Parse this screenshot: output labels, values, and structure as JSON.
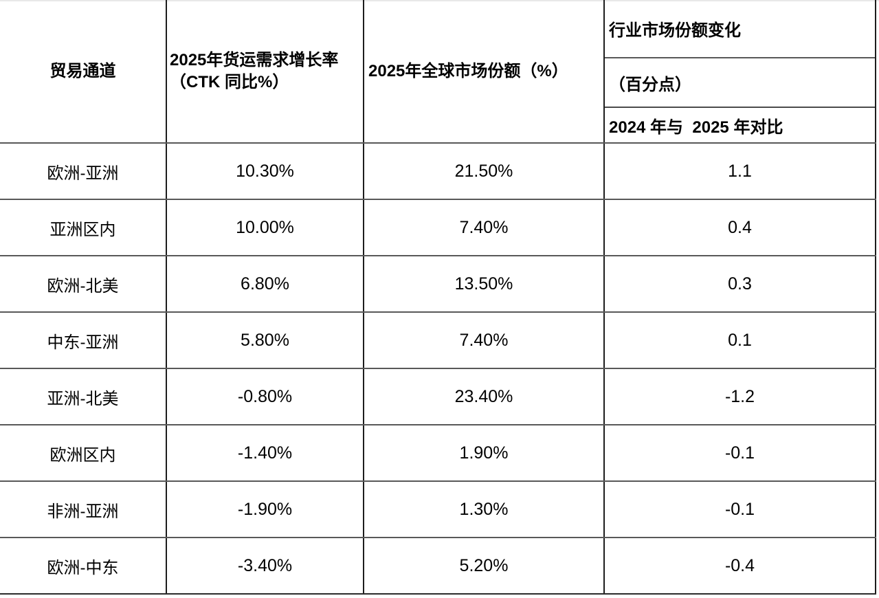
{
  "table": {
    "columns": {
      "route": "贸易通道",
      "growth_line1": "2025年货运需求增长率",
      "growth_line2": "（CTK 同比%）",
      "share": "2025年全球市场份额（%）",
      "change_title": "行业市场份额变化",
      "change_unit": "（百分点）",
      "change_compare": "2024 年与  2025 年对比"
    },
    "rows": [
      {
        "route": "欧洲-亚洲",
        "growth": "10.30%",
        "share": "21.50%",
        "change": "1.1"
      },
      {
        "route": "亚洲区内",
        "growth": "10.00%",
        "share": "7.40%",
        "change": "0.4"
      },
      {
        "route": "欧洲-北美",
        "growth": "6.80%",
        "share": "13.50%",
        "change": "0.3"
      },
      {
        "route": "中东-亚洲",
        "growth": "5.80%",
        "share": "7.40%",
        "change": "0.1"
      },
      {
        "route": "亚洲-北美",
        "growth": "-0.80%",
        "share": "23.40%",
        "change": "-1.2"
      },
      {
        "route": "欧洲区内",
        "growth": "-1.40%",
        "share": "1.90%",
        "change": "-0.1"
      },
      {
        "route": "非洲-亚洲",
        "growth": "-1.90%",
        "share": "1.30%",
        "change": "-0.1"
      },
      {
        "route": "欧洲-中东",
        "growth": "-3.40%",
        "share": "5.20%",
        "change": "-0.4"
      }
    ]
  },
  "colors": {
    "background": "#ffffff",
    "text": "#000000",
    "vertical_border": "#1c1c1c",
    "horizontal_border": "#585858",
    "bottom_border": "#2b2b2b",
    "top_edge": "#e8e8e8"
  }
}
